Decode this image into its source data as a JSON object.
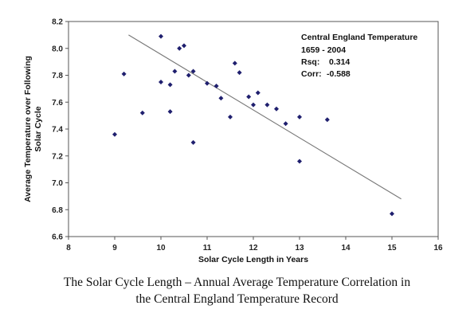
{
  "chart_data": {
    "type": "scatter",
    "xlabel": "Solar Cycle Length in Years",
    "ylabel_lines": [
      "Average Temperature over Following",
      "Solar Cycle"
    ],
    "xlim": [
      8,
      16
    ],
    "ylim": [
      6.6,
      8.2
    ],
    "x_ticks": [
      8,
      9,
      10,
      11,
      12,
      13,
      14,
      15,
      16
    ],
    "y_ticks": [
      6.6,
      6.8,
      7.0,
      7.2,
      7.4,
      7.6,
      7.8,
      8.0,
      8.2
    ],
    "x_tick_labels": [
      "8",
      "9",
      "10",
      "11",
      "12",
      "13",
      "14",
      "15",
      "16"
    ],
    "y_tick_labels": [
      "6.6",
      "6.8",
      "7.0",
      "7.2",
      "7.4",
      "7.6",
      "7.8",
      "8.0",
      "8.2"
    ],
    "grid": false,
    "point_color": "#1f1f6e",
    "points": [
      {
        "x": 9.0,
        "y": 7.36
      },
      {
        "x": 9.2,
        "y": 7.81
      },
      {
        "x": 9.6,
        "y": 7.52
      },
      {
        "x": 10.0,
        "y": 8.09
      },
      {
        "x": 10.0,
        "y": 7.75
      },
      {
        "x": 10.2,
        "y": 7.73
      },
      {
        "x": 10.2,
        "y": 7.53
      },
      {
        "x": 10.3,
        "y": 7.83
      },
      {
        "x": 10.4,
        "y": 8.0
      },
      {
        "x": 10.5,
        "y": 8.02
      },
      {
        "x": 10.6,
        "y": 7.8
      },
      {
        "x": 10.7,
        "y": 7.83
      },
      {
        "x": 10.7,
        "y": 7.3
      },
      {
        "x": 11.0,
        "y": 7.74
      },
      {
        "x": 11.2,
        "y": 7.72
      },
      {
        "x": 11.3,
        "y": 7.63
      },
      {
        "x": 11.5,
        "y": 7.49
      },
      {
        "x": 11.6,
        "y": 7.89
      },
      {
        "x": 11.7,
        "y": 7.82
      },
      {
        "x": 11.9,
        "y": 7.64
      },
      {
        "x": 12.0,
        "y": 7.58
      },
      {
        "x": 12.1,
        "y": 7.67
      },
      {
        "x": 12.3,
        "y": 7.58
      },
      {
        "x": 12.5,
        "y": 7.55
      },
      {
        "x": 12.7,
        "y": 7.44
      },
      {
        "x": 13.0,
        "y": 7.49
      },
      {
        "x": 13.0,
        "y": 7.16
      },
      {
        "x": 13.6,
        "y": 7.47
      },
      {
        "x": 15.0,
        "y": 6.77
      }
    ],
    "trendline": {
      "x": [
        9.3,
        15.2
      ],
      "y": [
        8.1,
        6.88
      ]
    },
    "annotation": {
      "title": "Central England Temperature",
      "period": "1659 - 2004",
      "rsq_label": "Rsq:",
      "rsq_value": "0.314",
      "corr_label": "Corr:",
      "corr_value": "-0.588"
    }
  },
  "caption": {
    "line1": "The Solar Cycle Length – Annual Average Temperature Correlation in",
    "line2": "the Central England Temperature Record"
  }
}
